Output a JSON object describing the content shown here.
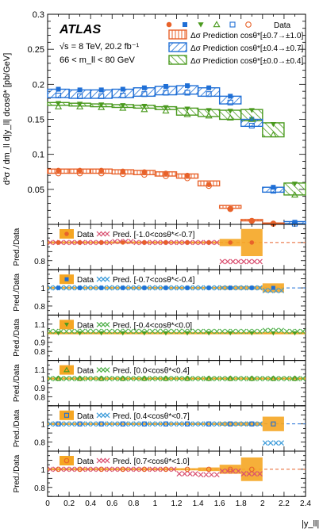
{
  "chart_data": {
    "type": "multi-panel histogram with ratio panels",
    "experiment": "ATLAS",
    "energy_text": "√s = 8 TeV, 20.2 fb⁻¹",
    "mass_text": "66 < m_ll < 80 GeV",
    "ylabel_main": "d³σ / dm_ll d|y_ll| dcosθ* [pb/GeV]",
    "ylabel_ratio": "Pred./Data",
    "xlabel": "|y_ll|",
    "x_edges": [
      0.0,
      0.2,
      0.4,
      0.6,
      0.8,
      1.0,
      1.2,
      1.4,
      1.6,
      1.8,
      2.0,
      2.2,
      2.4
    ],
    "xlim": [
      0,
      2.4
    ],
    "x_ticks": [
      "0",
      "0.2",
      "0.4",
      "0.6",
      "0.8",
      "1",
      "1.2",
      "1.4",
      "1.6",
      "1.8",
      "2",
      "2.2",
      "2.4"
    ],
    "main_ylim": [
      0,
      0.3
    ],
    "main_yticks": [
      "0.05",
      "0.1",
      "0.15",
      "0.2",
      "0.25",
      "0.3"
    ],
    "legend_title": "Data",
    "legend_main": [
      {
        "label": "Δσ Prediction cosθ*[±0.7→±1.0]",
        "color": "#e8622a"
      },
      {
        "label": "Δσ Prediction cosθ*[±0.4→±0.7]",
        "color": "#1f6fd6"
      },
      {
        "label": "Δσ Prediction cosθ*[±0.0→±0.4]",
        "color": "#4a9a1e"
      }
    ],
    "series_main": [
      {
        "marker": "filled-circle",
        "color": "#e8622a",
        "data": [
          0.077,
          0.077,
          0.077,
          0.076,
          0.075,
          0.073,
          0.07,
          0.057,
          0.022,
          0.005,
          0.001,
          null
        ],
        "pred_low": [
          0.073,
          0.073,
          0.073,
          0.072,
          0.071,
          0.069,
          0.066,
          0.055,
          0.023,
          0.005,
          0.001,
          null
        ],
        "pred_high": [
          0.079,
          0.079,
          0.079,
          0.078,
          0.077,
          0.075,
          0.072,
          0.062,
          0.027,
          0.007,
          0.002,
          null
        ]
      },
      {
        "marker": "filled-square",
        "color": "#1f6fd6",
        "data": [
          0.193,
          0.192,
          0.192,
          0.193,
          0.195,
          0.197,
          0.198,
          0.195,
          0.183,
          0.15,
          0.053,
          0.003
        ],
        "pred_low": [
          0.181,
          0.18,
          0.18,
          0.181,
          0.183,
          0.185,
          0.186,
          0.183,
          0.172,
          0.14,
          0.046,
          0.001
        ],
        "pred_high": [
          0.193,
          0.192,
          0.192,
          0.193,
          0.195,
          0.197,
          0.198,
          0.195,
          0.183,
          0.15,
          0.053,
          0.004
        ]
      },
      {
        "marker": "filled-triangle-down",
        "color": "#4a9a1e",
        "data": [
          0.173,
          0.172,
          0.171,
          0.17,
          0.169,
          0.167,
          0.165,
          0.163,
          0.162,
          0.163,
          0.143,
          0.058
        ],
        "pred_low": [
          0.17,
          0.169,
          0.168,
          0.167,
          0.166,
          0.164,
          0.156,
          0.154,
          0.15,
          0.148,
          0.125,
          0.042
        ],
        "pred_high": [
          0.174,
          0.173,
          0.172,
          0.171,
          0.17,
          0.168,
          0.166,
          0.164,
          0.163,
          0.164,
          0.145,
          0.059
        ]
      },
      {
        "marker": "open-triangle-up",
        "color": "#4a9a1e",
        "data": [
          0.168,
          0.168,
          0.167,
          0.166,
          0.164,
          0.162,
          0.157,
          0.155,
          0.152,
          0.15,
          0.128,
          0.042
        ]
      },
      {
        "marker": "open-square",
        "color": "#1f6fd6",
        "data": [
          0.184,
          0.183,
          0.183,
          0.184,
          0.186,
          0.188,
          0.188,
          0.186,
          0.174,
          0.141,
          0.048,
          0.001
        ]
      },
      {
        "marker": "open-circle",
        "color": "#e8622a",
        "data": [
          0.073,
          0.073,
          0.073,
          0.072,
          0.071,
          0.069,
          0.066,
          0.055,
          0.022,
          0.005,
          0.001,
          null
        ]
      }
    ],
    "ratio_ylim": [
      0.7,
      1.2
    ],
    "ratio_panels": [
      {
        "data_marker": "filled-circle",
        "color": "#e8622a",
        "cross_color": "#d94f70",
        "label": "[-1.0<cosθ*<-0.7]",
        "yticks": [
          "0.8",
          "1"
        ],
        "ratio": [
          1.0,
          1.0,
          1.0,
          1.01,
          1.0,
          1.0,
          1.0,
          1.0,
          0.79,
          0.79,
          null,
          null
        ],
        "err": [
          0.01,
          0.01,
          0.01,
          0.01,
          0.01,
          0.01,
          0.01,
          0.01,
          0.04,
          0.15,
          null,
          null
        ]
      },
      {
        "data_marker": "filled-square",
        "color": "#1f6fd6",
        "cross_color": "#3a9ad9",
        "label": "[-0.7<cosθ*<-0.4]",
        "yticks": [
          "0.8",
          "1"
        ],
        "ratio": [
          1.0,
          1.0,
          1.0,
          1.0,
          1.0,
          1.0,
          1.0,
          1.0,
          1.0,
          1.0,
          0.97,
          null
        ],
        "err": [
          0.01,
          0.01,
          0.01,
          0.01,
          0.01,
          0.01,
          0.01,
          0.01,
          0.02,
          0.02,
          0.05,
          null
        ]
      },
      {
        "data_marker": "filled-triangle-down",
        "color": "#4a9a1e",
        "cross_color": "#4fb04a",
        "label": "[-0.4<cosθ*<0.0]",
        "yticks": [
          "0.8",
          "0.9",
          "1",
          "1.1"
        ],
        "ratio": [
          1.02,
          1.02,
          1.02,
          1.02,
          1.02,
          1.02,
          1.02,
          1.02,
          1.02,
          1.02,
          1.03,
          1.02
        ],
        "err": [
          0.01,
          0.01,
          0.01,
          0.01,
          0.01,
          0.01,
          0.01,
          0.01,
          0.01,
          0.01,
          0.01,
          0.01
        ]
      },
      {
        "data_marker": "open-triangle-up",
        "color": "#4a9a1e",
        "cross_color": "#4fb04a",
        "label": "[0.0<cosθ*<0.4]",
        "yticks": [
          "0.8",
          "0.9",
          "1",
          "1.1"
        ],
        "ratio": [
          1.0,
          1.0,
          1.0,
          1.0,
          1.0,
          1.0,
          1.0,
          1.0,
          1.0,
          1.0,
          1.0,
          1.0
        ],
        "err": [
          0.01,
          0.01,
          0.01,
          0.01,
          0.01,
          0.01,
          0.01,
          0.01,
          0.01,
          0.01,
          0.01,
          0.01
        ]
      },
      {
        "data_marker": "open-square",
        "color": "#1f6fd6",
        "cross_color": "#3a9ad9",
        "label": "[0.4<cosθ*<0.7]",
        "yticks": [
          "0.8",
          "1"
        ],
        "ratio": [
          1.0,
          1.0,
          1.0,
          1.0,
          1.0,
          1.0,
          1.0,
          1.0,
          1.0,
          1.0,
          0.79,
          null
        ],
        "err": [
          0.01,
          0.01,
          0.01,
          0.01,
          0.01,
          0.01,
          0.01,
          0.01,
          0.02,
          0.02,
          0.08,
          null
        ]
      },
      {
        "data_marker": "open-circle",
        "color": "#e8622a",
        "cross_color": "#d94f70",
        "label": "[0.7<cosθ*<1.0]",
        "yticks": [
          "0.8",
          "1"
        ],
        "ratio": [
          1.0,
          1.0,
          1.0,
          1.0,
          1.0,
          1.0,
          0.95,
          0.94,
          0.98,
          0.95,
          null,
          null
        ],
        "err": [
          0.01,
          0.01,
          0.01,
          0.01,
          0.01,
          0.01,
          0.01,
          0.02,
          0.05,
          0.13,
          null,
          null
        ]
      }
    ],
    "ratio_legend_data": "Data",
    "ratio_legend_pred": "Pred."
  }
}
